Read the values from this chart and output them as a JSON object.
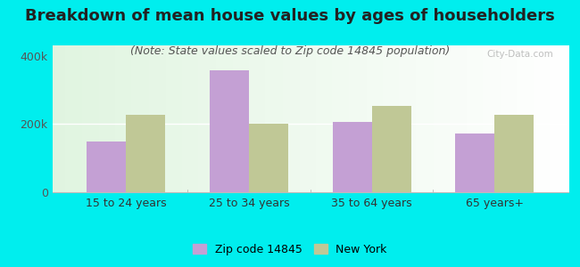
{
  "title": "Breakdown of mean house values by ages of householders",
  "subtitle": "(Note: State values scaled to Zip code 14845 population)",
  "categories": [
    "15 to 24 years",
    "25 to 34 years",
    "35 to 64 years",
    "65 years+"
  ],
  "zip_values": [
    148000,
    358000,
    205000,
    172000
  ],
  "ny_values": [
    228000,
    200000,
    252000,
    228000
  ],
  "zip_color": "#C4A0D4",
  "ny_color": "#C0C896",
  "background_outer": "#00EEEE",
  "ylim": [
    0,
    430000
  ],
  "ytick_labels": [
    "0",
    "200k",
    "400k"
  ],
  "ytick_values": [
    0,
    200000,
    400000
  ],
  "legend_zip_label": "Zip code 14845",
  "legend_ny_label": "New York",
  "bar_width": 0.32,
  "title_fontsize": 13,
  "subtitle_fontsize": 9,
  "axis_fontsize": 9,
  "legend_fontsize": 9,
  "title_color": "#222222",
  "subtitle_color": "#555555"
}
